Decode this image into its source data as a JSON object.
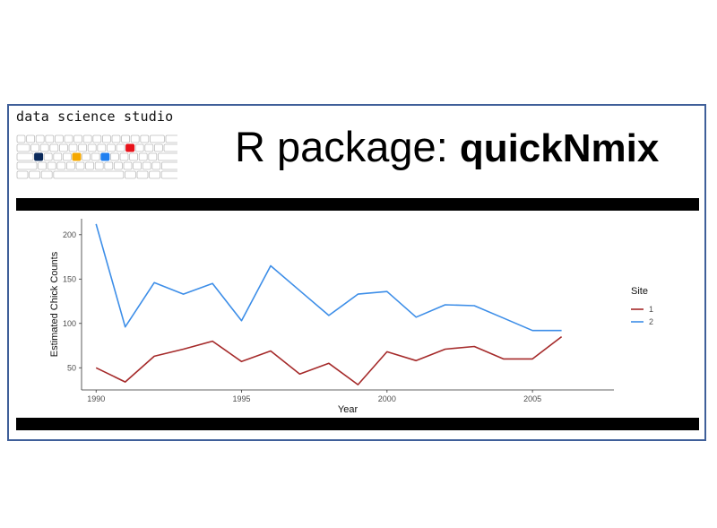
{
  "branding": {
    "studio_name": "data science studio",
    "key_colors": {
      "navy": "#0b2a5b",
      "orange": "#f5a800",
      "red": "#e8131b",
      "blue": "#1f7ff0"
    }
  },
  "header": {
    "title_prefix": "R package: ",
    "title_package": "quickNmix"
  },
  "chart_data": {
    "type": "line",
    "title": "",
    "xlabel": "Year",
    "ylabel": "Estimated Chick Counts",
    "xlim": [
      1989.5,
      2007.8
    ],
    "ylim": [
      25,
      218
    ],
    "xticks": [
      1990,
      1995,
      2000,
      2005
    ],
    "yticks": [
      50,
      100,
      150,
      200
    ],
    "grid": false,
    "legend": {
      "title": "Site",
      "position": "right"
    },
    "x": [
      1990,
      1991,
      1992,
      1993,
      1994,
      1995,
      1996,
      1997,
      1998,
      1999,
      2000,
      2001,
      2002,
      2003,
      2004,
      2005,
      2006
    ],
    "series": [
      {
        "name": "1",
        "color": "#a52a2a",
        "values": [
          50,
          34,
          63,
          71,
          80,
          57,
          69,
          43,
          55,
          31,
          68,
          58,
          71,
          74,
          60,
          60,
          85
        ]
      },
      {
        "name": "2",
        "color": "#3d8ee8",
        "values": [
          212,
          96,
          146,
          133,
          145,
          103,
          165,
          137,
          109,
          133,
          136,
          107,
          121,
          120,
          106,
          92,
          92
        ]
      }
    ]
  }
}
